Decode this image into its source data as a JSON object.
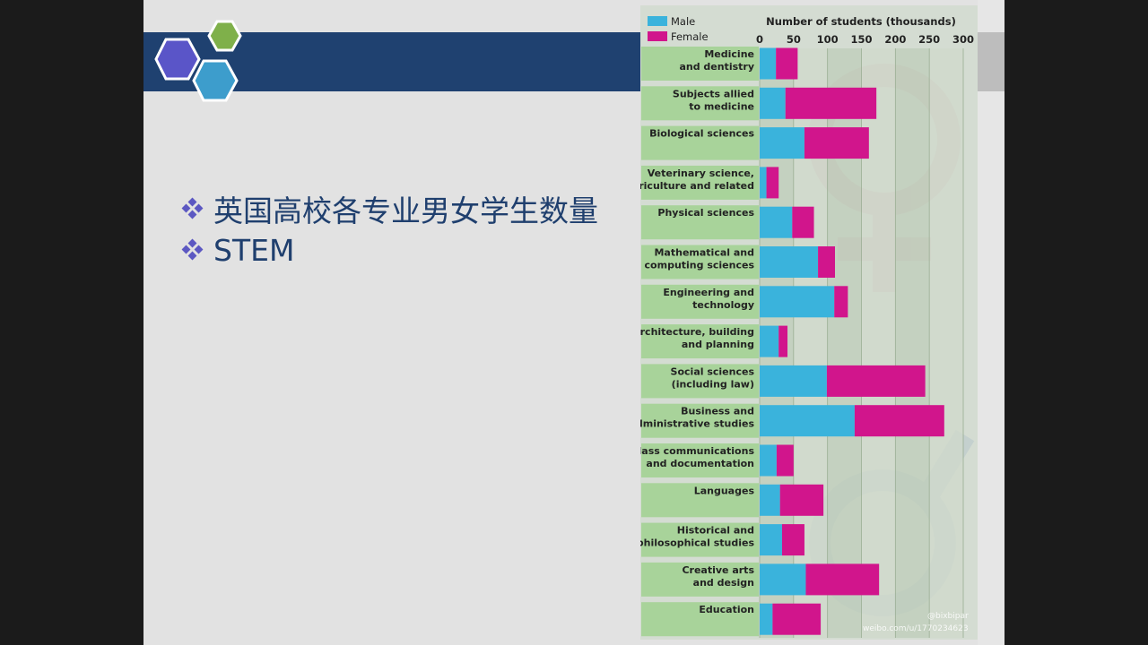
{
  "slide": {
    "bullets": [
      {
        "text": "英国高校各专业男女学生数量"
      },
      {
        "text": "STEM"
      }
    ]
  },
  "colors": {
    "male": "#3ab3dc",
    "female": "#d1158c",
    "banner": "#1f4170",
    "bullet_text": "#1f3f6e",
    "label_bg": "#a8d39a"
  },
  "watermark": {
    "line1": "@bixbipar",
    "line2": "weibo.com/u/1770234623"
  },
  "chart_data": {
    "type": "bar",
    "orientation": "horizontal",
    "stacked": true,
    "title": "Number of students (thousands)",
    "xlabel": "Number of students (thousands)",
    "ylabel": "",
    "xlim": [
      0,
      300
    ],
    "xticks": [
      0,
      50,
      100,
      150,
      200,
      250,
      300
    ],
    "grid": true,
    "legend": "top-left",
    "categories": [
      "Medicine\nand dentistry",
      "Subjects allied\nto medicine",
      "Biological sciences",
      "Veterinary science,\nagriculture and related",
      "Physical sciences",
      "Mathematical and\ncomputing sciences",
      "Engineering and\ntechnology",
      "Architecture, building\nand planning",
      "Social sciences\n(including law)",
      "Business and\nadministrative studies",
      "Mass communications\nand documentation",
      "Languages",
      "Historical and\nphilosophical studies",
      "Creative arts\nand design",
      "Education"
    ],
    "series": [
      {
        "name": "Male",
        "color": "#3ab3dc",
        "values": [
          24,
          38,
          66,
          10,
          48,
          86,
          110,
          28,
          99,
          140,
          25,
          30,
          33,
          68,
          19
        ]
      },
      {
        "name": "Female",
        "color": "#d1158c",
        "values": [
          32,
          134,
          95,
          18,
          32,
          25,
          20,
          13,
          145,
          132,
          25,
          64,
          33,
          108,
          71
        ]
      }
    ]
  }
}
